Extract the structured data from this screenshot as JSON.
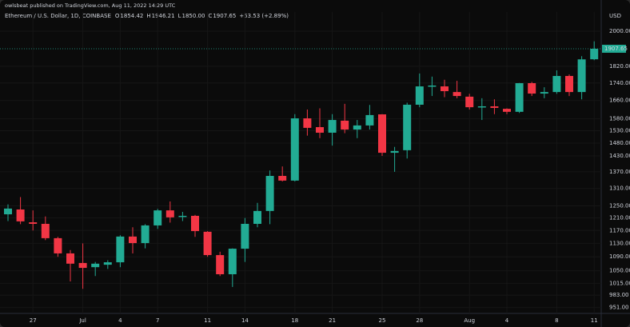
{
  "header": {
    "byline": "owlsbeat published on TradingView.com, Aug 11, 2022 14:29 UTC"
  },
  "chart_data": {
    "type": "candlestick",
    "title": "Ethereum / U.S. Dollar, 1D, COINBASE",
    "ohlc_legend": [
      {
        "label": "O",
        "value": "1854.42"
      },
      {
        "label": "H",
        "value": "1946.21"
      },
      {
        "label": "L",
        "value": "1850.00"
      },
      {
        "label": "C",
        "value": "1907.65"
      }
    ],
    "change": "+53.53 (+2.89%)",
    "y_axis_unit": "USD",
    "categories": [
      null,
      null,
      "27",
      null,
      null,
      null,
      "Jul",
      null,
      null,
      "4",
      null,
      null,
      "7",
      null,
      null,
      null,
      "11",
      null,
      null,
      "14",
      null,
      null,
      null,
      "18",
      null,
      null,
      "21",
      null,
      null,
      null,
      "25",
      null,
      null,
      "28",
      null,
      null,
      null,
      "Aug",
      null,
      null,
      "4",
      null,
      null,
      null,
      "8",
      null,
      null,
      "11"
    ],
    "open": [
      1222,
      1238,
      1196,
      1191,
      1146,
      1100,
      1072,
      1060,
      1067,
      1074,
      1151,
      1131,
      1186,
      1235,
      1215,
      1217,
      1166,
      1095,
      1040,
      1114,
      1191,
      1233,
      1355,
      1338,
      1582,
      1545,
      1522,
      1572,
      1535,
      1552,
      1599,
      1442,
      1452,
      1641,
      1724,
      1724,
      1698,
      1677,
      1630,
      1634,
      1623,
      1610,
      1739,
      1691,
      1698,
      1773,
      1698,
      1854.42
    ],
    "high": [
      1255,
      1280,
      1235,
      1215,
      1150,
      1110,
      1130,
      1075,
      1080,
      1155,
      1180,
      1190,
      1240,
      1265,
      1230,
      1220,
      1168,
      1105,
      1115,
      1210,
      1260,
      1375,
      1390,
      1600,
      1620,
      1625,
      1600,
      1645,
      1575,
      1640,
      1600,
      1465,
      1650,
      1785,
      1770,
      1755,
      1750,
      1690,
      1670,
      1665,
      1625,
      1740,
      1745,
      1720,
      1800,
      1780,
      1870,
      1946.21
    ],
    "low": [
      1200,
      1190,
      1170,
      1140,
      1090,
      1020,
      1000,
      1035,
      1055,
      1060,
      1100,
      1115,
      1175,
      1195,
      1200,
      1150,
      1090,
      1035,
      1005,
      1075,
      1180,
      1190,
      1335,
      1335,
      1510,
      1500,
      1470,
      1520,
      1500,
      1535,
      1430,
      1370,
      1420,
      1630,
      1680,
      1675,
      1670,
      1620,
      1575,
      1600,
      1600,
      1605,
      1680,
      1670,
      1690,
      1680,
      1665,
      1850
    ],
    "close": [
      1241,
      1199,
      1191,
      1146,
      1100,
      1070,
      1058,
      1070,
      1074,
      1151,
      1131,
      1186,
      1235,
      1212,
      1217,
      1168,
      1095,
      1040,
      1114,
      1191,
      1233,
      1355,
      1338,
      1582,
      1542,
      1522,
      1575,
      1535,
      1552,
      1596,
      1442,
      1449,
      1641,
      1724,
      1728,
      1702,
      1680,
      1630,
      1634,
      1627,
      1610,
      1739,
      1691,
      1698,
      1773,
      1698,
      1854,
      1907.65
    ],
    "up_color": "#22ab94",
    "down_color": "#f23645",
    "log_scale": true,
    "grid": true,
    "ylim": [
      936,
      2106
    ],
    "yticks": [
      {
        "value": 2000,
        "label": "2000.00"
      },
      {
        "value": 1820,
        "label": "1820.00"
      },
      {
        "value": 1740,
        "label": "1740.00"
      },
      {
        "value": 1660,
        "label": "1660.00"
      },
      {
        "value": 1580,
        "label": "1580.00"
      },
      {
        "value": 1530,
        "label": "1530.00"
      },
      {
        "value": 1480,
        "label": "1480.00"
      },
      {
        "value": 1430,
        "label": "1430.00"
      },
      {
        "value": 1370,
        "label": "1370.00"
      },
      {
        "value": 1310,
        "label": "1310.00"
      },
      {
        "value": 1250,
        "label": "1250.00"
      },
      {
        "value": 1210,
        "label": "1210.00"
      },
      {
        "value": 1170,
        "label": "1170.00"
      },
      {
        "value": 1130,
        "label": "1130.00"
      },
      {
        "value": 1090,
        "label": "1090.00"
      },
      {
        "value": 1050,
        "label": "1050.00"
      },
      {
        "value": 1015,
        "label": "1015.00"
      },
      {
        "value": 983,
        "label": "983.00"
      },
      {
        "value": 951,
        "label": "951.00"
      }
    ],
    "last_price": {
      "value": 1907.65,
      "label": "1907.65"
    }
  }
}
